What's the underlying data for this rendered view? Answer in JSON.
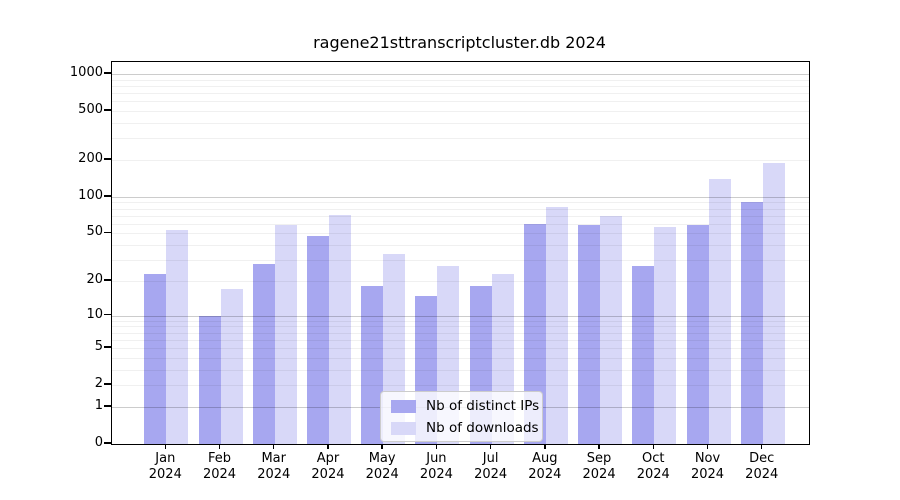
{
  "title": "ragene21sttranscriptcluster.db 2024",
  "chart_data": {
    "type": "bar",
    "title": "ragene21sttranscriptcluster.db 2024",
    "categories": [
      "Jan",
      "Feb",
      "Mar",
      "Apr",
      "May",
      "Jun",
      "Jul",
      "Aug",
      "Sep",
      "Oct",
      "Nov",
      "Dec"
    ],
    "year": "2024",
    "series": [
      {
        "name": "Nb of distinct IPs",
        "color": "#a7a7f0",
        "values": [
          23,
          10,
          28,
          48,
          18,
          15,
          18,
          60,
          59,
          27,
          59,
          90
        ]
      },
      {
        "name": "Nb of downloads",
        "color": "#d8d8f8",
        "values": [
          53,
          17,
          59,
          71,
          34,
          27,
          23,
          83,
          70,
          57,
          140,
          190
        ]
      }
    ],
    "xlabel": "",
    "ylabel": "",
    "y_axis": {
      "scale": "log10(value+1)",
      "ticks": [
        0,
        1,
        2,
        5,
        10,
        20,
        50,
        100,
        200,
        500,
        1000
      ],
      "range_top": 1280
    },
    "grid": {
      "major_values": [
        1,
        10,
        100,
        1000
      ],
      "minor_values": [
        2,
        3,
        4,
        5,
        6,
        7,
        8,
        9,
        20,
        30,
        40,
        50,
        60,
        70,
        80,
        90,
        200,
        300,
        400,
        500,
        600,
        700,
        800,
        900
      ],
      "drawn_over_bars": true
    },
    "legend": {
      "position": "bottom-center-inside",
      "items": [
        "Nb of distinct IPs",
        "Nb of downloads"
      ]
    }
  }
}
